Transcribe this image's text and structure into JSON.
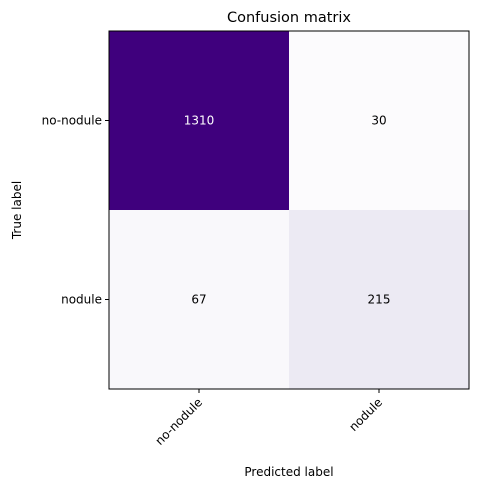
{
  "chart_data": {
    "type": "heatmap",
    "title": "Confusion matrix",
    "xlabel": "Predicted label",
    "ylabel": "True label",
    "x_categories": [
      "no-nodule",
      "nodule"
    ],
    "y_categories": [
      "no-nodule",
      "nodule"
    ],
    "values": [
      [
        1310,
        30
      ],
      [
        67,
        215
      ]
    ],
    "colormap": "Purples",
    "x_tick_rotation_deg": 45,
    "colors": {
      "max": "#3f007d",
      "low": "#fcfbfd",
      "text_on_dark": "#ffffff",
      "text_on_light": "#000000"
    }
  }
}
